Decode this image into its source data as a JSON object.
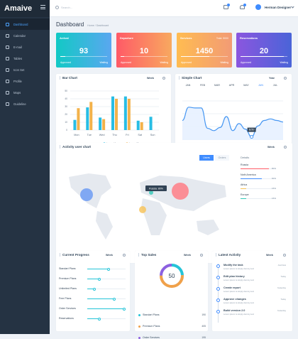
{
  "app": {
    "brand": "Amaive",
    "search_placeholder": "Search...",
    "username": "Herman Designer"
  },
  "sidebar": {
    "items": [
      {
        "label": "Dashboard",
        "active": true
      },
      {
        "label": "Calendar",
        "active": false
      },
      {
        "label": "E-mail",
        "active": false
      },
      {
        "label": "Tables",
        "active": false
      },
      {
        "label": "Icon Set",
        "active": false
      },
      {
        "label": "Profile",
        "active": false
      },
      {
        "label": "Maps",
        "active": false
      },
      {
        "label": "Guideline",
        "active": false
      }
    ]
  },
  "page": {
    "title": "Dashboard",
    "breadcrumb": "Home / Dashboard"
  },
  "stats": [
    {
      "label": "Arrival",
      "value": "93",
      "right": "",
      "progress": 0.1,
      "approved": "Approved",
      "waiting": "Waiting"
    },
    {
      "label": "Departure",
      "value": "10",
      "right": "",
      "progress": 0.08,
      "approved": "Approved",
      "waiting": "Waiting"
    },
    {
      "label": "Services",
      "value": "1450",
      "right": "Total: 5000",
      "progress": 0.6,
      "approved": "Approved",
      "waiting": "Waiting"
    },
    {
      "label": "Reservations",
      "value": "20",
      "right": "",
      "progress": 0.93,
      "approved": "Approved",
      "waiting": "Waiting"
    }
  ],
  "bar_card": {
    "title": "Bar Chart",
    "filter": "Week"
  },
  "line_card": {
    "title": "Simple Chart",
    "filter": "Year",
    "tooltip": "$250",
    "months": [
      "JAN",
      "FEB",
      "MAR",
      "APR",
      "MAY",
      "JUN",
      "JUL"
    ],
    "active_month": "JUN",
    "x_ticks": [
      "10",
      "12",
      "14",
      "16",
      "18",
      "20",
      "22",
      "24",
      "26",
      "28",
      "30",
      "32",
      "34",
      "36",
      "38",
      "40",
      "42"
    ]
  },
  "map_card": {
    "title": "Activity user chart",
    "filter": "Week",
    "tooltip": "Russia: 80%",
    "toggle_a": "Users",
    "toggle_b": "Orders",
    "details_title": "Details"
  },
  "countries": [
    {
      "name": "Russia",
      "percent": 80,
      "color": "#ff5d67"
    },
    {
      "name": "Noth America",
      "percent": 60,
      "color": "#3f8cff"
    },
    {
      "name": "Africa",
      "percent": 15,
      "color": "#f8c255"
    },
    {
      "name": "Europe",
      "percent": 15,
      "color": "#31c8b7"
    }
  ],
  "progress_card": {
    "title": "Current Progress",
    "filter": "Week"
  },
  "progress": [
    {
      "label": "Standart Plans",
      "value": 0.52
    },
    {
      "label": "Premium Plans",
      "value": 0.28
    },
    {
      "label": "Unlimited Plans",
      "value": 0.14
    },
    {
      "label": "Free Plans",
      "value": 0.66
    },
    {
      "label": "Order Services",
      "value": 0.92
    },
    {
      "label": "Reservations",
      "value": 0.28
    }
  ],
  "sales_card": {
    "title": "Top Sales",
    "filter": "Week",
    "center": "50"
  },
  "sales": [
    {
      "label": "Standart Plans",
      "value": "190",
      "color": "#24c4d8"
    },
    {
      "label": "Premium Plans",
      "value": "405",
      "color": "#f0a14a"
    },
    {
      "label": "Order Services",
      "value": "195",
      "color": "#8c60e0"
    }
  ],
  "activity_card": {
    "title": "Latest Activity",
    "filter": "Week"
  },
  "activities": [
    {
      "title": "Modify the task",
      "desc": "Lorem ipsum is simply dummy text",
      "time": "Just Now"
    },
    {
      "title": "Edit plan history",
      "desc": "Lorem ipsum is simply dummy text",
      "time": "Today"
    },
    {
      "title": "Create report",
      "desc": "Lorem ipsum is simply dummy text",
      "time": "Yesterday"
    },
    {
      "title": "Approve changes",
      "desc": "Lorem ipsum is simply dummy text",
      "time": "Today"
    },
    {
      "title": "Build version 2.0",
      "desc": "Lorem ipsum is simply dummy text",
      "time": "Yesterday"
    }
  ],
  "chart_data": [
    {
      "type": "bar",
      "categories": [
        "Mon",
        "Tue",
        "Wed",
        "Thu",
        "Fri",
        "Sat",
        "Sun"
      ],
      "ylim": [
        0,
        50
      ],
      "y_ticks": [
        "50",
        "40",
        "30",
        "20",
        "10",
        "0"
      ],
      "series": [
        {
          "name": "Legend 1",
          "color": "#28bde4",
          "values": [
            13,
            29,
            16,
            43,
            43,
            12,
            17
          ]
        },
        {
          "name": "Legend 2",
          "color": "#f3b24a",
          "values": [
            28,
            36,
            14,
            40,
            40,
            10,
            0
          ]
        }
      ]
    },
    {
      "type": "line",
      "x": [
        "10",
        "12",
        "14",
        "16",
        "18",
        "20",
        "22",
        "24",
        "26",
        "28",
        "30",
        "32",
        "34",
        "36",
        "38",
        "40",
        "42"
      ],
      "values": [
        250,
        420,
        410,
        410,
        150,
        120,
        160,
        300,
        120,
        210,
        140,
        40,
        180,
        250,
        270,
        250,
        230
      ],
      "ylim": [
        0,
        500
      ]
    }
  ]
}
